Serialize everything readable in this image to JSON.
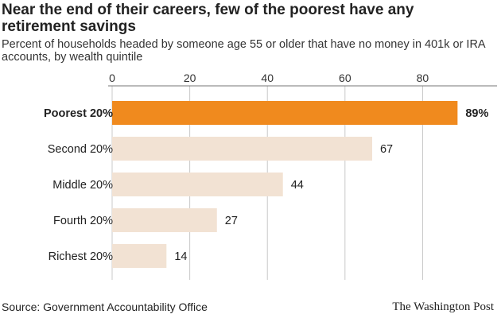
{
  "title": "Near the end of their careers, few of the poorest have any retirement savings",
  "subtitle": "Percent of households headed by someone age 55 or older that have no money in 401k or IRA accounts, by wealth quintile",
  "source": "Source: Government Accountability Office",
  "brand": "The Washington Post",
  "colors": {
    "highlight": "#f08a1e",
    "bar": "#f2e2d3",
    "grid": "#c9c9c9",
    "axis": "#777777"
  },
  "chart_data": {
    "type": "bar",
    "orientation": "horizontal",
    "categories": [
      "Poorest 20%",
      "Second 20%",
      "Middle 20%",
      "Fourth 20%",
      "Richest 20%"
    ],
    "values": [
      89,
      67,
      44,
      27,
      14
    ],
    "value_labels": [
      "89%",
      "67",
      "44",
      "27",
      "14"
    ],
    "highlight_index": 0,
    "xlim": [
      0,
      92
    ],
    "xticks": [
      0,
      20,
      40,
      60,
      80
    ],
    "xtick_labels": [
      "0",
      "20",
      "40",
      "60",
      "80"
    ],
    "grid": true,
    "xlabel": "",
    "ylabel": ""
  }
}
